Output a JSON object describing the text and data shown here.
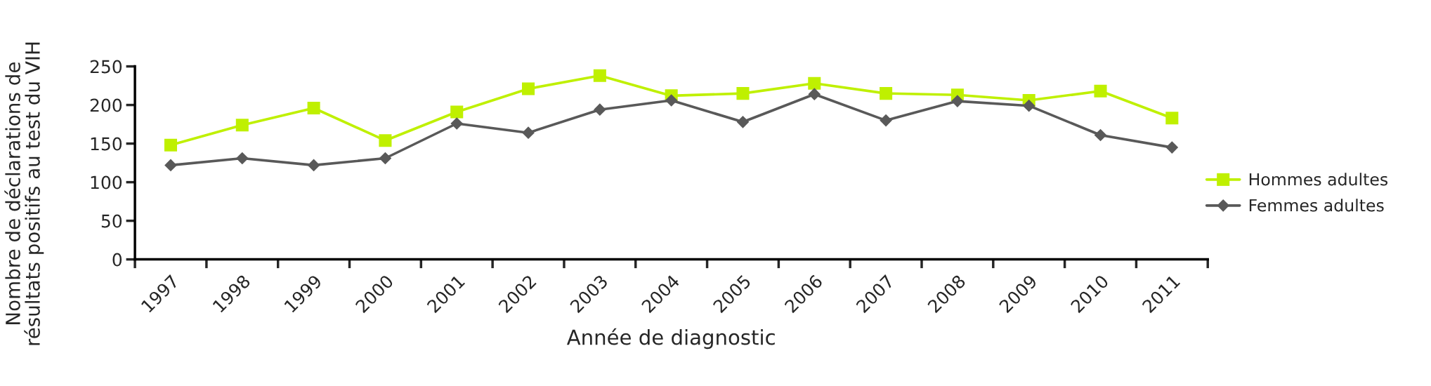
{
  "chart_data": {
    "type": "line",
    "xlabel": "Année de diagnostic",
    "ylabel": "Nombre de déclarations de\nrésultats positifs au test du VIH",
    "categories": [
      "1997",
      "1998",
      "1999",
      "2000",
      "2001",
      "2002",
      "2003",
      "2004",
      "2005",
      "2006",
      "2007",
      "2008",
      "2009",
      "2010",
      "2011"
    ],
    "series": [
      {
        "name": "Hommes adultes",
        "color": "#bff000",
        "marker": "square",
        "values": [
          148,
          174,
          196,
          154,
          191,
          221,
          238,
          212,
          215,
          228,
          215,
          213,
          206,
          218,
          183
        ]
      },
      {
        "name": "Femmes adultes",
        "color": "#595959",
        "marker": "diamond",
        "values": [
          122,
          131,
          122,
          131,
          176,
          164,
          194,
          206,
          178,
          214,
          180,
          205,
          199,
          161,
          145
        ]
      }
    ],
    "ylim": [
      0,
      250
    ],
    "yticks": [
      0,
      50,
      100,
      150,
      200,
      250
    ],
    "grid": false,
    "legend": "right",
    "line_style": "solid"
  }
}
